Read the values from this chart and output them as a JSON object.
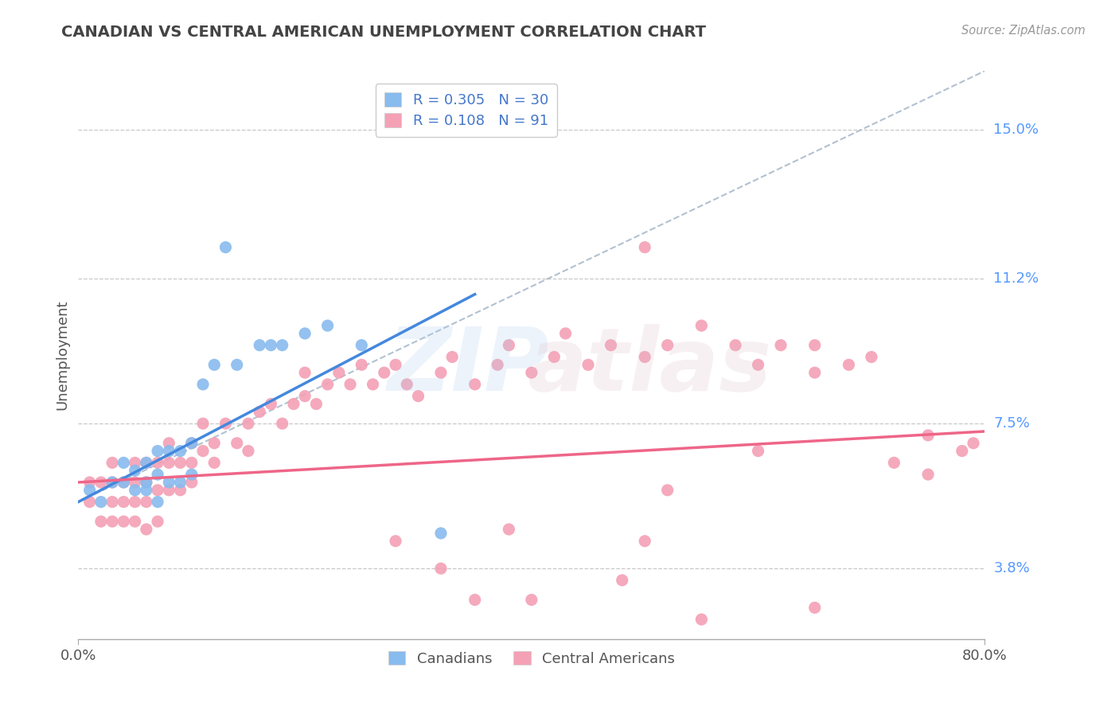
{
  "title": "CANADIAN VS CENTRAL AMERICAN UNEMPLOYMENT CORRELATION CHART",
  "source_text": "Source: ZipAtlas.com",
  "ylabel": "Unemployment",
  "xlim": [
    0.0,
    0.8
  ],
  "ylim": [
    0.02,
    0.165
  ],
  "xtick_labels": [
    "0.0%",
    "80.0%"
  ],
  "ytick_values": [
    0.038,
    0.075,
    0.112,
    0.15
  ],
  "ytick_labels": [
    "3.8%",
    "7.5%",
    "11.2%",
    "15.0%"
  ],
  "grid_color": "#bbbbbb",
  "background_color": "#ffffff",
  "title_color": "#444444",
  "axis_label_color": "#5599ff",
  "legend_R1": "R = 0.305",
  "legend_N1": "N = 30",
  "legend_R2": "R = 0.108",
  "legend_N2": "N = 91",
  "canadians_color": "#88bbee",
  "central_americans_color": "#f4a0b5",
  "trend1_color": "#4488dd",
  "trend2_color": "#ee6688",
  "ref_line_color": "#aabbcc",
  "canadians_x": [
    0.01,
    0.02,
    0.03,
    0.04,
    0.04,
    0.05,
    0.05,
    0.06,
    0.06,
    0.06,
    0.07,
    0.07,
    0.07,
    0.08,
    0.08,
    0.09,
    0.09,
    0.1,
    0.1,
    0.11,
    0.12,
    0.13,
    0.14,
    0.16,
    0.17,
    0.18,
    0.2,
    0.22,
    0.25,
    0.32
  ],
  "canadians_y": [
    0.058,
    0.055,
    0.06,
    0.06,
    0.065,
    0.058,
    0.063,
    0.058,
    0.06,
    0.065,
    0.055,
    0.062,
    0.068,
    0.06,
    0.068,
    0.06,
    0.068,
    0.062,
    0.07,
    0.085,
    0.09,
    0.12,
    0.09,
    0.095,
    0.095,
    0.095,
    0.098,
    0.1,
    0.095,
    0.047
  ],
  "central_americans_x": [
    0.01,
    0.01,
    0.02,
    0.02,
    0.03,
    0.03,
    0.03,
    0.03,
    0.04,
    0.04,
    0.04,
    0.05,
    0.05,
    0.05,
    0.05,
    0.06,
    0.06,
    0.06,
    0.06,
    0.07,
    0.07,
    0.07,
    0.08,
    0.08,
    0.08,
    0.09,
    0.09,
    0.1,
    0.1,
    0.1,
    0.11,
    0.11,
    0.12,
    0.12,
    0.13,
    0.14,
    0.15,
    0.15,
    0.16,
    0.17,
    0.18,
    0.19,
    0.2,
    0.2,
    0.21,
    0.22,
    0.23,
    0.24,
    0.25,
    0.26,
    0.27,
    0.28,
    0.29,
    0.3,
    0.32,
    0.33,
    0.35,
    0.37,
    0.38,
    0.4,
    0.42,
    0.43,
    0.45,
    0.47,
    0.5,
    0.5,
    0.52,
    0.55,
    0.58,
    0.6,
    0.62,
    0.65,
    0.65,
    0.68,
    0.7,
    0.72,
    0.75,
    0.78,
    0.79,
    0.5,
    0.35,
    0.55,
    0.52,
    0.6,
    0.65,
    0.75,
    0.28,
    0.32,
    0.4,
    0.48,
    0.38
  ],
  "central_americans_y": [
    0.055,
    0.06,
    0.05,
    0.06,
    0.05,
    0.055,
    0.06,
    0.065,
    0.05,
    0.055,
    0.06,
    0.05,
    0.055,
    0.06,
    0.065,
    0.048,
    0.055,
    0.06,
    0.065,
    0.05,
    0.058,
    0.065,
    0.058,
    0.065,
    0.07,
    0.058,
    0.065,
    0.06,
    0.065,
    0.07,
    0.068,
    0.075,
    0.065,
    0.07,
    0.075,
    0.07,
    0.068,
    0.075,
    0.078,
    0.08,
    0.075,
    0.08,
    0.082,
    0.088,
    0.08,
    0.085,
    0.088,
    0.085,
    0.09,
    0.085,
    0.088,
    0.09,
    0.085,
    0.082,
    0.088,
    0.092,
    0.085,
    0.09,
    0.095,
    0.088,
    0.092,
    0.098,
    0.09,
    0.095,
    0.092,
    0.12,
    0.095,
    0.1,
    0.095,
    0.09,
    0.095,
    0.088,
    0.095,
    0.09,
    0.092,
    0.065,
    0.072,
    0.068,
    0.07,
    0.045,
    0.03,
    0.025,
    0.058,
    0.068,
    0.028,
    0.062,
    0.045,
    0.038,
    0.03,
    0.035,
    0.048
  ],
  "trend1_x0": 0.0,
  "trend1_y0": 0.055,
  "trend1_x1": 0.35,
  "trend1_y1": 0.108,
  "trend2_x0": 0.0,
  "trend2_y0": 0.06,
  "trend2_x1": 0.8,
  "trend2_y1": 0.073
}
